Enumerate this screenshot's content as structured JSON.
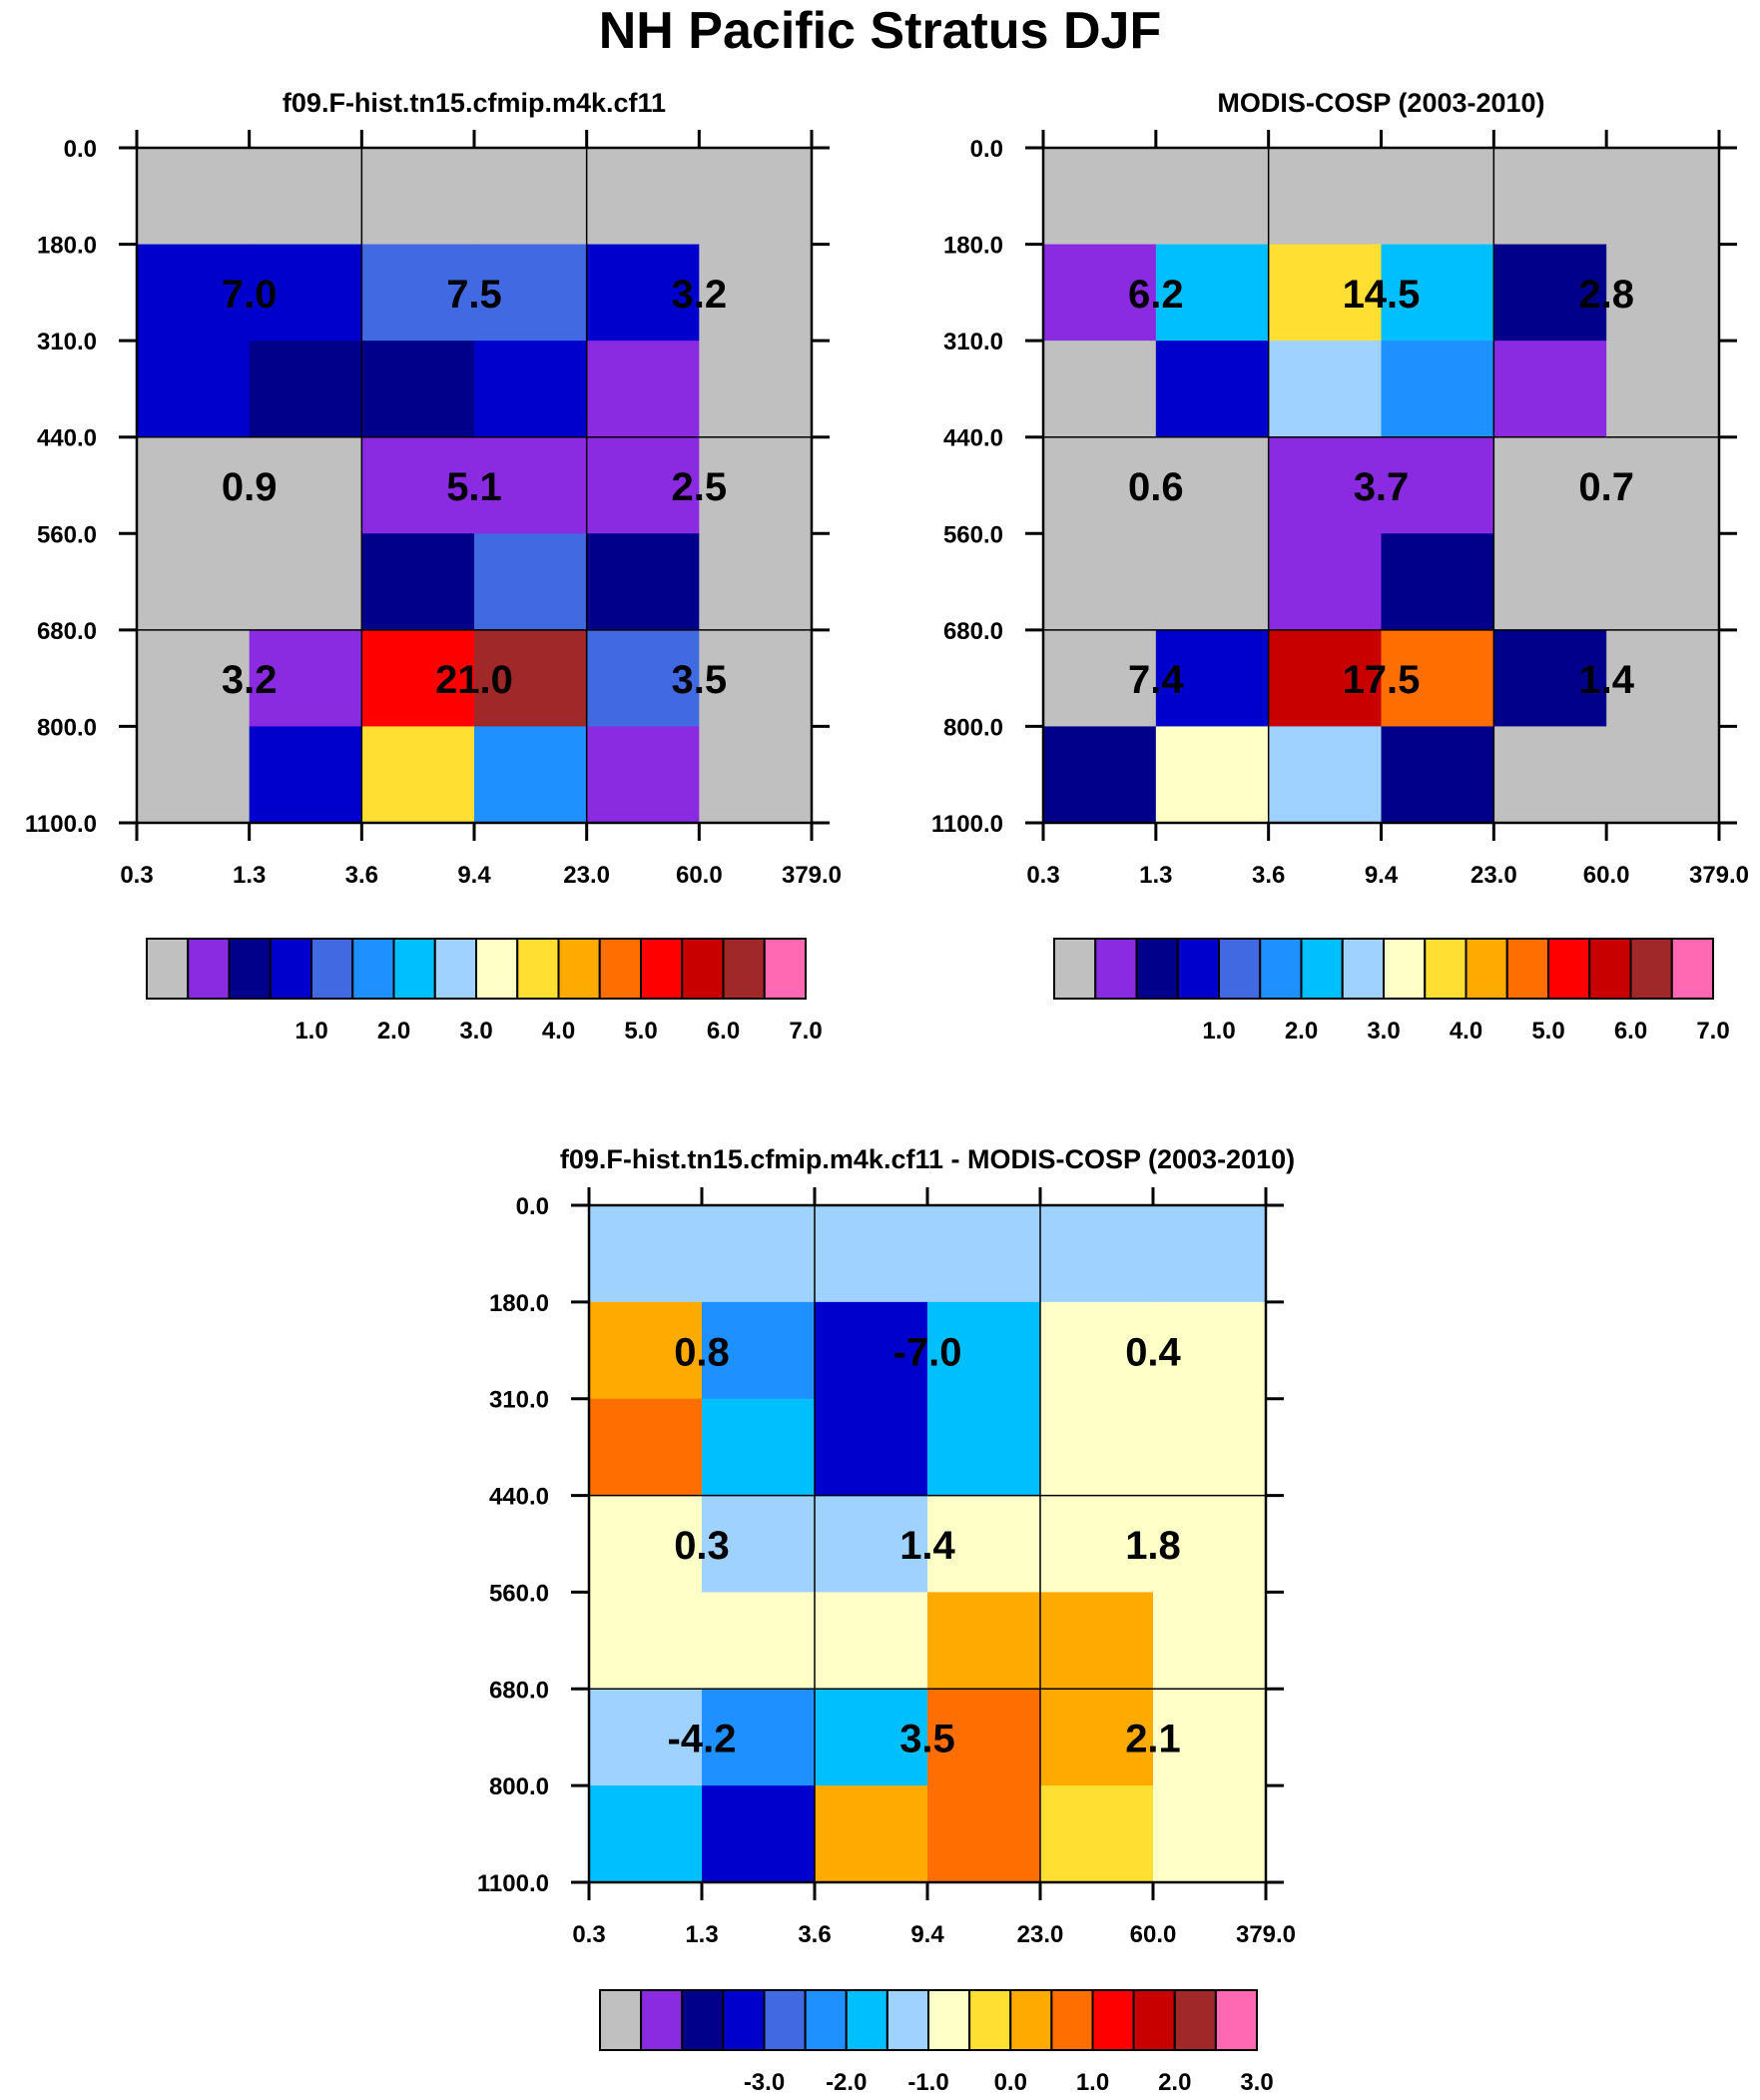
{
  "title": "NH Pacific Stratus DJF",
  "colors": {
    "abs_palette": [
      "#c0c0c0",
      "#8a2be2",
      "#00008b",
      "#0000cd",
      "#4169e1",
      "#1e90ff",
      "#00bfff",
      "#a0d2ff",
      "#ffffc8",
      "#ffe032",
      "#ffaa00",
      "#ff6e00",
      "#ff0000",
      "#c80000",
      "#a02828",
      "#ff69b4"
    ],
    "diff_palette": [
      "#c0c0c0",
      "#8a2be2",
      "#00008b",
      "#0000cd",
      "#4169e1",
      "#1e90ff",
      "#00bfff",
      "#a0d2ff",
      "#ffffc8",
      "#ffe032",
      "#ffaa00",
      "#ff6e00",
      "#ff0000",
      "#c80000",
      "#a02828",
      "#ff69b4"
    ]
  },
  "chart_data": [
    {
      "type": "heatmap",
      "title": "f09.F-hist.tn15.cfmip.m4k.cf11",
      "x_ticks": [
        "0.3",
        "1.3",
        "3.6",
        "9.4",
        "23.0",
        "60.0",
        "379.0"
      ],
      "y_ticks": [
        "0.0",
        "180.0",
        "310.0",
        "440.0",
        "560.0",
        "680.0",
        "800.0",
        "1100.0"
      ],
      "cell_color_index": [
        [
          0,
          0,
          0,
          0,
          0,
          0
        ],
        [
          3,
          3,
          4,
          4,
          3,
          0
        ],
        [
          3,
          2,
          2,
          3,
          1,
          0
        ],
        [
          0,
          0,
          1,
          1,
          1,
          0
        ],
        [
          0,
          0,
          2,
          4,
          2,
          0
        ],
        [
          0,
          1,
          12,
          14,
          4,
          0
        ],
        [
          0,
          3,
          9,
          5,
          1,
          0
        ]
      ],
      "box_values": [
        [
          "7.0",
          "7.5",
          "3.2"
        ],
        [
          "0.9",
          "5.1",
          "2.5"
        ],
        [
          "3.2",
          "21.0",
          "3.5"
        ]
      ],
      "colorbar_labels": [
        "1.0",
        "2.0",
        "3.0",
        "4.0",
        "5.0",
        "6.0",
        "7.0"
      ]
    },
    {
      "type": "heatmap",
      "title": "MODIS-COSP (2003-2010)",
      "x_ticks": [
        "0.3",
        "1.3",
        "3.6",
        "9.4",
        "23.0",
        "60.0",
        "379.0"
      ],
      "y_ticks": [
        "0.0",
        "180.0",
        "310.0",
        "440.0",
        "560.0",
        "680.0",
        "800.0",
        "1100.0"
      ],
      "cell_color_index": [
        [
          0,
          0,
          0,
          0,
          0,
          0
        ],
        [
          1,
          6,
          9,
          6,
          2,
          0
        ],
        [
          0,
          3,
          7,
          5,
          1,
          0
        ],
        [
          0,
          0,
          1,
          1,
          0,
          0
        ],
        [
          0,
          0,
          1,
          2,
          0,
          0
        ],
        [
          0,
          3,
          13,
          11,
          2,
          0
        ],
        [
          2,
          8,
          7,
          2,
          0,
          0
        ]
      ],
      "box_values": [
        [
          "6.2",
          "14.5",
          "2.8"
        ],
        [
          "0.6",
          "3.7",
          "0.7"
        ],
        [
          "7.4",
          "17.5",
          "1.4"
        ]
      ],
      "colorbar_labels": [
        "1.0",
        "2.0",
        "3.0",
        "4.0",
        "5.0",
        "6.0",
        "7.0"
      ]
    },
    {
      "type": "heatmap",
      "title": "f09.F-hist.tn15.cfmip.m4k.cf11 - MODIS-COSP (2003-2010)",
      "x_ticks": [
        "0.3",
        "1.3",
        "3.6",
        "9.4",
        "23.0",
        "60.0",
        "379.0"
      ],
      "y_ticks": [
        "0.0",
        "180.0",
        "310.0",
        "440.0",
        "560.0",
        "680.0",
        "800.0",
        "1100.0"
      ],
      "cell_color_index": [
        [
          7,
          7,
          7,
          7,
          7,
          7
        ],
        [
          10,
          5,
          3,
          6,
          8,
          8
        ],
        [
          11,
          6,
          3,
          6,
          8,
          8
        ],
        [
          8,
          7,
          7,
          8,
          8,
          8
        ],
        [
          8,
          8,
          8,
          10,
          10,
          8
        ],
        [
          7,
          5,
          6,
          11,
          10,
          8
        ],
        [
          6,
          3,
          10,
          11,
          9,
          8
        ]
      ],
      "box_values": [
        [
          "0.8",
          "-7.0",
          "0.4"
        ],
        [
          "0.3",
          "1.4",
          "1.8"
        ],
        [
          "-4.2",
          "3.5",
          "2.1"
        ]
      ],
      "colorbar_labels": [
        "-3.0",
        "-2.0",
        "-1.0",
        "0.0",
        "1.0",
        "2.0",
        "3.0"
      ]
    }
  ]
}
